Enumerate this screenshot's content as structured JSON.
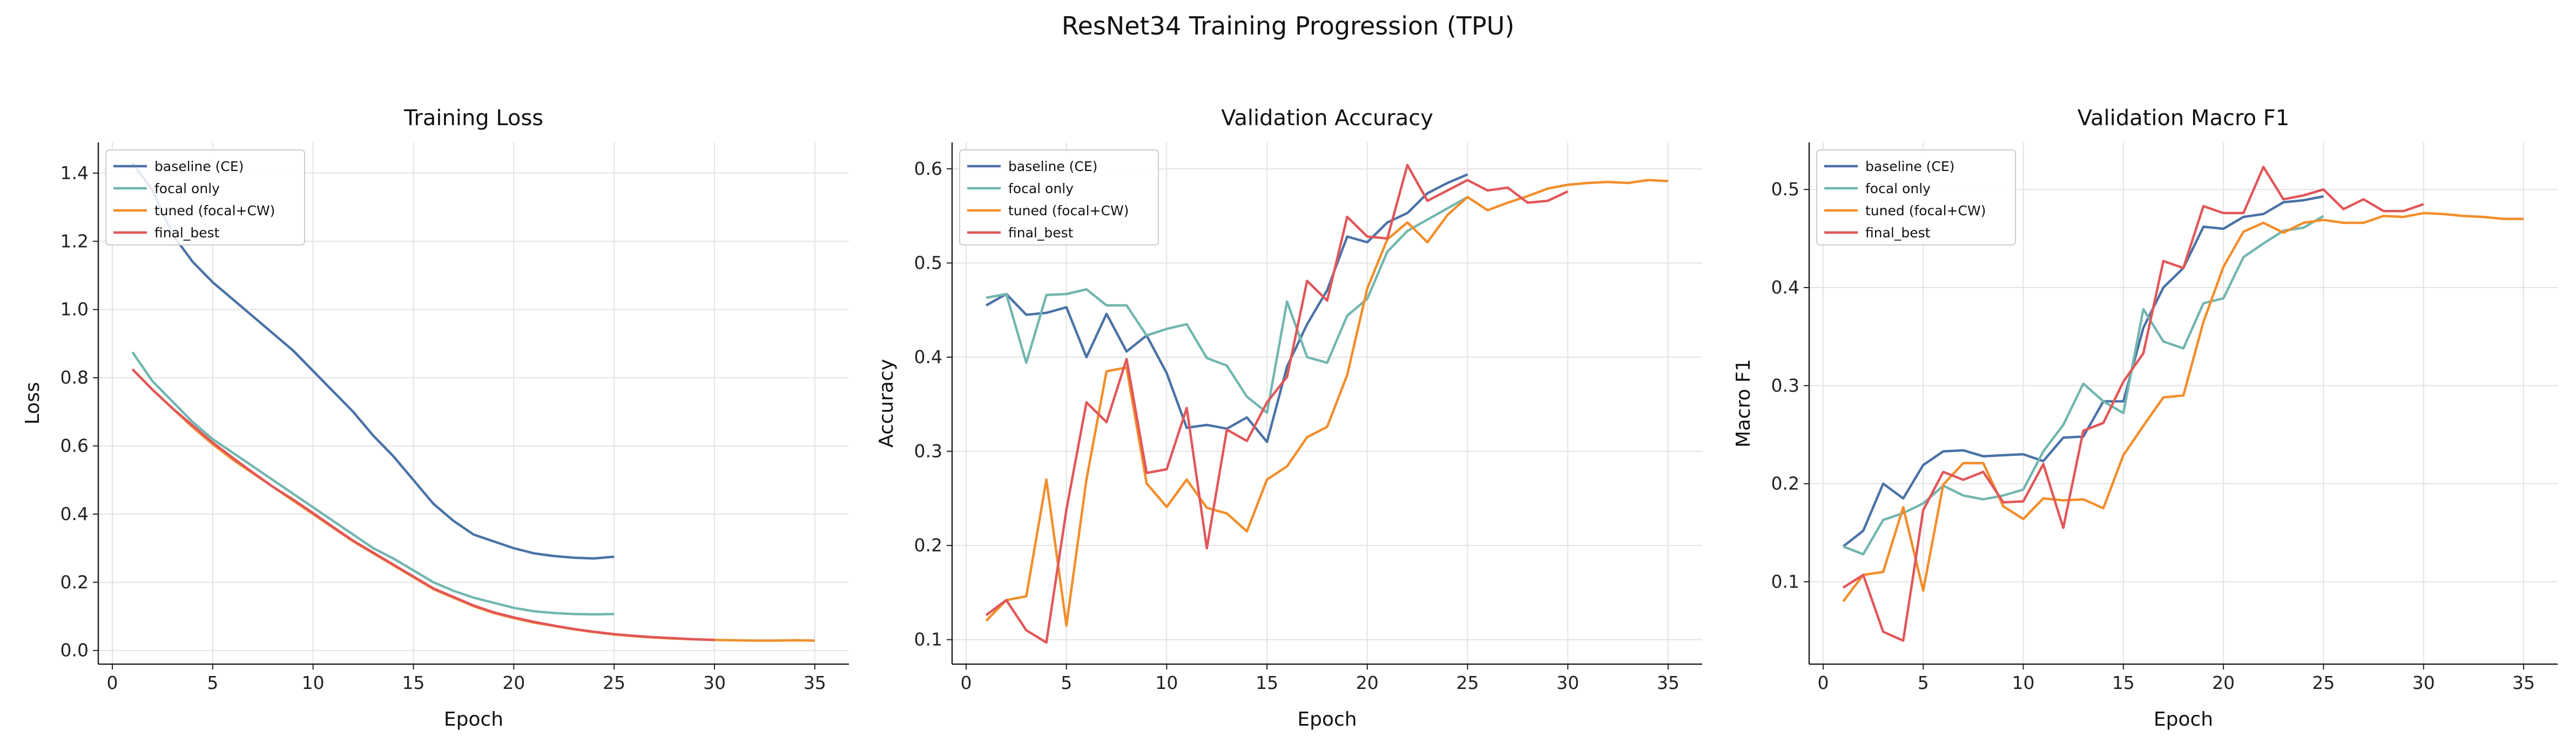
{
  "suptitle": "ResNet34 Training Progression (TPU)",
  "colors": {
    "baseline (CE)": "#4a72a6",
    "focal only": "#72b6b0",
    "tuned (focal+CW)": "#f28e2b",
    "final_best": "#e15759"
  },
  "chart_data": [
    {
      "type": "line",
      "title": "Training Loss",
      "xlabel": "Epoch",
      "ylabel": "Loss",
      "xlim": [
        -0.7,
        36.7
      ],
      "ylim": [
        -0.04,
        1.49
      ],
      "xticks": [
        0,
        5,
        10,
        15,
        20,
        25,
        30,
        35
      ],
      "yticks": [
        0.0,
        0.2,
        0.4,
        0.6,
        0.8,
        1.0,
        1.2,
        1.4
      ],
      "ytick_labels": [
        "0.0",
        "0.2",
        "0.4",
        "0.6",
        "0.8",
        "1.0",
        "1.2",
        "1.4"
      ],
      "grid": true,
      "legend": "upper-left",
      "series": [
        {
          "name": "baseline (CE)",
          "values": [
            1.43,
            1.35,
            1.22,
            1.14,
            1.08,
            1.03,
            0.98,
            0.93,
            0.88,
            0.82,
            0.76,
            0.7,
            0.63,
            0.57,
            0.5,
            0.43,
            0.38,
            0.34,
            0.32,
            0.3,
            0.285,
            0.277,
            0.272,
            0.27,
            0.275
          ]
        },
        {
          "name": "focal only",
          "values": [
            0.875,
            0.79,
            0.73,
            0.67,
            0.62,
            0.58,
            0.54,
            0.5,
            0.46,
            0.42,
            0.38,
            0.34,
            0.3,
            0.27,
            0.235,
            0.2,
            0.175,
            0.155,
            0.14,
            0.125,
            0.115,
            0.11,
            0.107,
            0.106,
            0.107
          ]
        },
        {
          "name": "tuned (focal+CW)",
          "values": [
            0.825,
            0.765,
            0.71,
            0.655,
            0.605,
            0.56,
            0.52,
            0.48,
            0.44,
            0.4,
            0.36,
            0.32,
            0.285,
            0.25,
            0.215,
            0.18,
            0.155,
            0.13,
            0.11,
            0.095,
            0.082,
            0.072,
            0.062,
            0.054,
            0.047,
            0.042,
            0.038,
            0.035,
            0.033,
            0.031,
            0.03,
            0.029,
            0.029,
            0.03,
            0.029
          ]
        },
        {
          "name": "final_best",
          "values": [
            0.825,
            0.765,
            0.71,
            0.66,
            0.61,
            0.565,
            0.522,
            0.48,
            0.443,
            0.403,
            0.362,
            0.322,
            0.287,
            0.252,
            0.217,
            0.182,
            0.157,
            0.132,
            0.112,
            0.097,
            0.084,
            0.073,
            0.063,
            0.055,
            0.048,
            0.043,
            0.039,
            0.036,
            0.033,
            0.031
          ]
        }
      ]
    },
    {
      "type": "line",
      "title": "Validation Accuracy",
      "xlabel": "Epoch",
      "ylabel": "Accuracy",
      "xlim": [
        -0.7,
        36.7
      ],
      "ylim": [
        0.074,
        0.628
      ],
      "xticks": [
        0,
        5,
        10,
        15,
        20,
        25,
        30,
        35
      ],
      "yticks": [
        0.1,
        0.2,
        0.3,
        0.4,
        0.5,
        0.6
      ],
      "ytick_labels": [
        "0.1",
        "0.2",
        "0.3",
        "0.4",
        "0.5",
        "0.6"
      ],
      "grid": true,
      "legend": "upper-left",
      "series": [
        {
          "name": "baseline (CE)",
          "values": [
            0.455,
            0.467,
            0.445,
            0.447,
            0.453,
            0.4,
            0.446,
            0.406,
            0.423,
            0.383,
            0.325,
            0.328,
            0.324,
            0.336,
            0.31,
            0.39,
            0.435,
            0.471,
            0.528,
            0.522,
            0.543,
            0.553,
            0.574,
            0.585,
            0.594
          ]
        },
        {
          "name": "focal only",
          "values": [
            0.463,
            0.467,
            0.394,
            0.466,
            0.467,
            0.472,
            0.455,
            0.455,
            0.423,
            0.43,
            0.435,
            0.399,
            0.391,
            0.358,
            0.341,
            0.459,
            0.4,
            0.394,
            0.444,
            0.462,
            0.512,
            0.534,
            0.546,
            0.558,
            0.57
          ]
        },
        {
          "name": "tuned (focal+CW)",
          "values": [
            0.12,
            0.142,
            0.146,
            0.27,
            0.115,
            0.27,
            0.385,
            0.389,
            0.266,
            0.241,
            0.27,
            0.24,
            0.234,
            0.215,
            0.27,
            0.284,
            0.315,
            0.326,
            0.381,
            0.473,
            0.525,
            0.543,
            0.522,
            0.551,
            0.57,
            0.556,
            0.564,
            0.571,
            0.579,
            0.583,
            0.585,
            0.586,
            0.585,
            0.588,
            0.587
          ]
        },
        {
          "name": "final_best",
          "values": [
            0.126,
            0.142,
            0.11,
            0.097,
            0.238,
            0.352,
            0.331,
            0.398,
            0.277,
            0.281,
            0.346,
            0.197,
            0.323,
            0.311,
            0.352,
            0.379,
            0.481,
            0.46,
            0.549,
            0.528,
            0.526,
            0.604,
            0.566,
            0.577,
            0.588,
            0.577,
            0.58,
            0.564,
            0.566,
            0.576
          ]
        }
      ]
    },
    {
      "type": "line",
      "title": "Validation Macro F1",
      "xlabel": "Epoch",
      "ylabel": "Macro F1",
      "xlim": [
        -0.7,
        36.7
      ],
      "ylim": [
        0.016,
        0.548
      ],
      "xticks": [
        0,
        5,
        10,
        15,
        20,
        25,
        30,
        35
      ],
      "yticks": [
        0.1,
        0.2,
        0.3,
        0.4,
        0.5
      ],
      "ytick_labels": [
        "0.1",
        "0.2",
        "0.3",
        "0.4",
        "0.5"
      ],
      "grid": true,
      "legend": "upper-left",
      "series": [
        {
          "name": "baseline (CE)",
          "values": [
            0.136,
            0.152,
            0.2,
            0.185,
            0.219,
            0.233,
            0.234,
            0.228,
            0.229,
            0.23,
            0.223,
            0.247,
            0.248,
            0.284,
            0.284,
            0.359,
            0.4,
            0.42,
            0.462,
            0.46,
            0.472,
            0.475,
            0.487,
            0.489,
            0.493
          ]
        },
        {
          "name": "focal only",
          "values": [
            0.136,
            0.128,
            0.163,
            0.17,
            0.18,
            0.198,
            0.188,
            0.184,
            0.188,
            0.194,
            0.233,
            0.26,
            0.302,
            0.284,
            0.272,
            0.378,
            0.345,
            0.338,
            0.384,
            0.389,
            0.431,
            0.445,
            0.458,
            0.461,
            0.473
          ]
        },
        {
          "name": "tuned (focal+CW)",
          "values": [
            0.08,
            0.107,
            0.11,
            0.176,
            0.091,
            0.199,
            0.221,
            0.221,
            0.177,
            0.164,
            0.185,
            0.183,
            0.184,
            0.175,
            0.229,
            0.259,
            0.288,
            0.29,
            0.365,
            0.421,
            0.457,
            0.466,
            0.456,
            0.466,
            0.469,
            0.466,
            0.466,
            0.473,
            0.472,
            0.476,
            0.475,
            0.473,
            0.472,
            0.47,
            0.47
          ]
        },
        {
          "name": "final_best",
          "values": [
            0.094,
            0.107,
            0.049,
            0.04,
            0.173,
            0.212,
            0.204,
            0.212,
            0.181,
            0.182,
            0.22,
            0.155,
            0.254,
            0.262,
            0.304,
            0.333,
            0.427,
            0.42,
            0.483,
            0.476,
            0.476,
            0.523,
            0.49,
            0.494,
            0.5,
            0.48,
            0.49,
            0.478,
            0.478,
            0.485
          ]
        }
      ]
    }
  ]
}
